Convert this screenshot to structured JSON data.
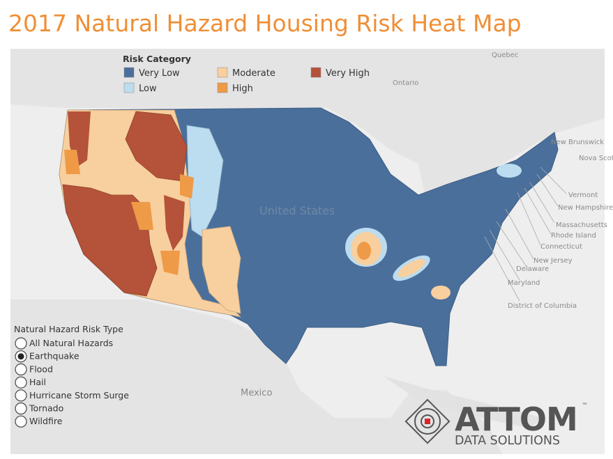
{
  "header": {
    "title": "2017 Natural Hazard Housing Risk Heat Map"
  },
  "legend": {
    "title": "Risk Category",
    "items": [
      {
        "label": "Very Low",
        "color": "#4a6f9b"
      },
      {
        "label": "Low",
        "color": "#bcdcef"
      },
      {
        "label": "Moderate",
        "color": "#f8cf9e"
      },
      {
        "label": "High",
        "color": "#ee9a47"
      },
      {
        "label": "Very High",
        "color": "#b4533a"
      }
    ]
  },
  "map_labels": [
    "Quebec",
    "Ontario",
    "New Brunswick",
    "Nova Scotia",
    "Vermont",
    "New Hampshire",
    "Massachusetts",
    "Rhode Island",
    "Connecticut",
    "New Jersey",
    "Delaware",
    "Maryland",
    "District of Columbia",
    "United States",
    "Mexico"
  ],
  "filter": {
    "title": "Natural Hazard Risk Type",
    "options": [
      "All Natural Hazards",
      "Earthquake",
      "Flood",
      "Hail",
      "Hurricane Storm Surge",
      "Tornado",
      "Wildfire"
    ],
    "selected": "Earthquake"
  },
  "logo": {
    "name": "ATTOM",
    "tagline": "DATA SOLUTIONS"
  }
}
